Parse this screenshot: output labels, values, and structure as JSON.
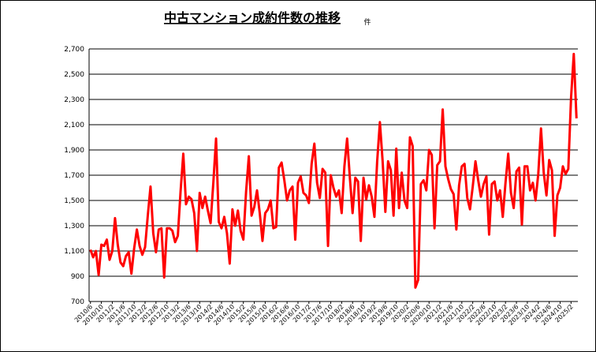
{
  "chart_data": {
    "type": "line",
    "title": "中古マンション成約件数の推移",
    "unit": "件",
    "categories": [
      "2010/6",
      null,
      null,
      null,
      "2010/10",
      null,
      null,
      null,
      "2011/2",
      null,
      null,
      null,
      "2011/6",
      null,
      null,
      null,
      "2011/10",
      null,
      null,
      null,
      "2012/2",
      null,
      null,
      null,
      "2012/6",
      null,
      null,
      null,
      "2012/10",
      null,
      null,
      null,
      "2013/2",
      null,
      null,
      null,
      "2013/6",
      null,
      null,
      null,
      "2013/10",
      null,
      null,
      null,
      "2014/2",
      null,
      null,
      null,
      "2014/6",
      null,
      null,
      null,
      "2014/10",
      null,
      null,
      null,
      "2015/2",
      null,
      null,
      null,
      "2015/6",
      null,
      null,
      null,
      "2015/10",
      null,
      null,
      null,
      "2016/2",
      null,
      null,
      null,
      "2016/6",
      null,
      null,
      null,
      "2016/10",
      null,
      null,
      null,
      "2017/2",
      null,
      null,
      null,
      "2017/6",
      null,
      null,
      null,
      "2017/10",
      null,
      null,
      null,
      "2018/2",
      null,
      null,
      null,
      "2018/6",
      null,
      null,
      null,
      "2018/10",
      null,
      null,
      null,
      "2019/2",
      null,
      null,
      null,
      "2019/6",
      null,
      null,
      null,
      "2019/10",
      null,
      null,
      null,
      "2020/2",
      null,
      null,
      null,
      "2020/6",
      null,
      null,
      null,
      "2020/10",
      null,
      null,
      null,
      "2021/2",
      null,
      null,
      null,
      "2021/6",
      null,
      null,
      null,
      "2021/10",
      null,
      null,
      null,
      "2022/2",
      null,
      null,
      null,
      "2022/6",
      null,
      null,
      null,
      "2022/10",
      null,
      null,
      null,
      "2023/2",
      null,
      null,
      null,
      "2023/6",
      null,
      null,
      null,
      "2023/10",
      null,
      null,
      null,
      "2024/2",
      null,
      null,
      null,
      "2024/6",
      null,
      null,
      null,
      "2024/10",
      null,
      null,
      null,
      "2025/2",
      null,
      null
    ],
    "series": [
      {
        "color": "#ff0000",
        "values": [
          1110,
          1050,
          1100,
          910,
          1150,
          1140,
          1190,
          1030,
          1100,
          1360,
          1150,
          1010,
          980,
          1060,
          1090,
          920,
          1120,
          1270,
          1140,
          1070,
          1130,
          1380,
          1610,
          1240,
          1090,
          1270,
          1280,
          890,
          1280,
          1280,
          1260,
          1170,
          1220,
          1570,
          1870,
          1470,
          1530,
          1510,
          1400,
          1100,
          1560,
          1440,
          1530,
          1420,
          1320,
          1640,
          1990,
          1330,
          1280,
          1370,
          1240,
          1000,
          1430,
          1300,
          1420,
          1260,
          1190,
          1570,
          1850,
          1380,
          1450,
          1580,
          1400,
          1180,
          1400,
          1430,
          1500,
          1280,
          1290,
          1760,
          1800,
          1660,
          1500,
          1580,
          1610,
          1190,
          1640,
          1690,
          1560,
          1540,
          1480,
          1790,
          1950,
          1640,
          1520,
          1750,
          1720,
          1140,
          1700,
          1600,
          1530,
          1580,
          1400,
          1770,
          1990,
          1680,
          1400,
          1680,
          1650,
          1180,
          1680,
          1510,
          1620,
          1530,
          1370,
          1810,
          2120,
          1810,
          1410,
          1810,
          1740,
          1380,
          1910,
          1440,
          1720,
          1500,
          1440,
          2000,
          1930,
          810,
          870,
          1630,
          1660,
          1580,
          1900,
          1860,
          1280,
          1780,
          1810,
          2220,
          1770,
          1670,
          1590,
          1550,
          1270,
          1620,
          1770,
          1790,
          1520,
          1430,
          1610,
          1810,
          1660,
          1530,
          1630,
          1690,
          1230,
          1630,
          1650,
          1500,
          1580,
          1370,
          1640,
          1870,
          1560,
          1440,
          1730,
          1760,
          1310,
          1770,
          1770,
          1580,
          1640,
          1500,
          1710,
          2070,
          1720,
          1540,
          1820,
          1740,
          1220,
          1540,
          1600,
          1770,
          1710,
          1750,
          2310,
          2660,
          2150
        ]
      }
    ],
    "ylim": [
      700,
      2700
    ],
    "yticks": [
      700,
      900,
      {
        "value": 1100,
        "label": "1,100"
      },
      {
        "value": 1300,
        "label": "1,300"
      },
      {
        "value": 1500,
        "label": "1,500"
      },
      {
        "value": 1700,
        "label": "1,700"
      },
      {
        "value": 1900,
        "label": "1,900"
      },
      {
        "value": 2100,
        "label": "2,100"
      },
      {
        "value": 2300,
        "label": "2,300"
      },
      {
        "value": 2500,
        "label": "2,500"
      },
      {
        "value": 2700,
        "label": "2,700"
      }
    ],
    "grid": true
  }
}
